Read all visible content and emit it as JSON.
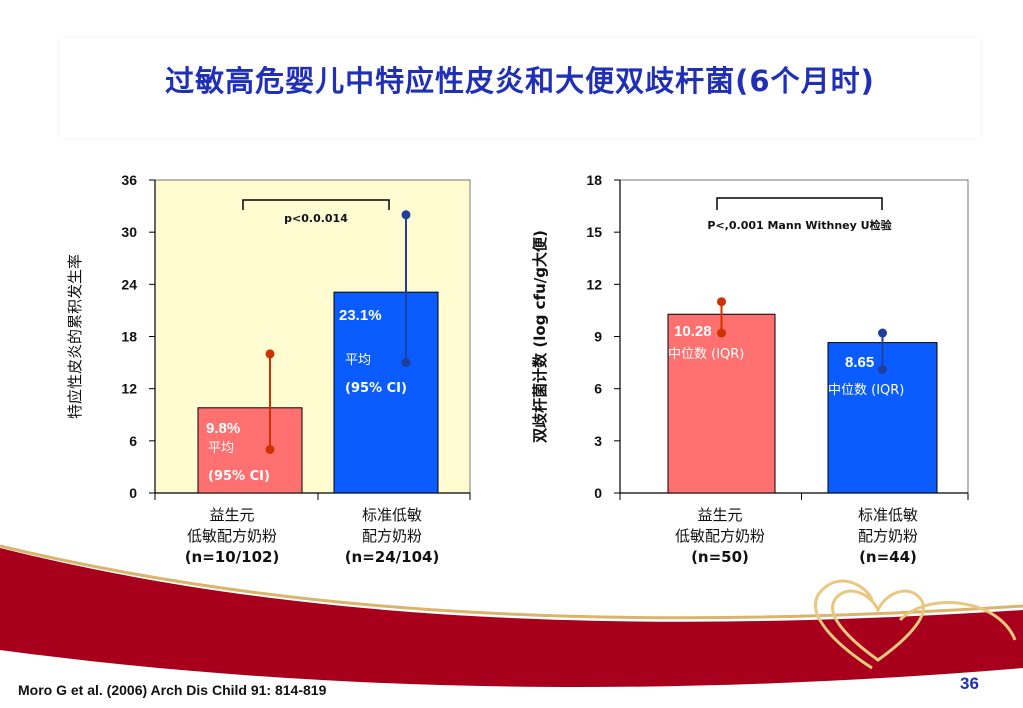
{
  "slide": {
    "title": "过敏高危婴儿中特应性皮炎和大便双歧杆菌(6个月时)",
    "citation": "Moro G et al. (2006) Arch Dis Child 91: 814-819",
    "page_number": "36",
    "colors": {
      "title": "#1f2fb8",
      "probiotic_bar": "#ff7070",
      "standard_bar": "#0a5cff",
      "plot_bg_left": "#fefcd0",
      "error_red": "#cc3300",
      "error_blue": "#1f3f9f",
      "footer": "#a8001c"
    }
  },
  "chart_data": [
    {
      "type": "bar",
      "ylabel": "特应性皮炎的累积发生率",
      "ylim": [
        0,
        36
      ],
      "yticks": [
        0,
        6,
        12,
        18,
        24,
        30,
        36
      ],
      "categories": [
        [
          "益生元",
          "低敏配方奶粉",
          "(n=10/102)"
        ],
        [
          "标准低敏",
          "配方奶粉",
          "(n=24/104)"
        ]
      ],
      "values": [
        9.8,
        23.1
      ],
      "value_labels": [
        "9.8%",
        "23.1%"
      ],
      "stat_labels": [
        [
          "平均",
          "(95% CI)"
        ],
        [
          "平均",
          "(95% CI)"
        ]
      ],
      "ci": [
        [
          5.0,
          16.0
        ],
        [
          15.0,
          32.0
        ]
      ],
      "bracket_label": "p<0.0.014"
    },
    {
      "type": "bar",
      "ylabel": "双歧杆菌计数 (log cfu/g大便)",
      "ylim": [
        0,
        18
      ],
      "yticks": [
        0,
        3,
        6,
        9,
        12,
        15,
        18
      ],
      "categories": [
        [
          "益生元",
          "低敏配方奶粉",
          "(n=50)"
        ],
        [
          "标准低敏",
          "配方奶粉",
          "(n=44)"
        ]
      ],
      "values": [
        10.28,
        8.65
      ],
      "value_labels": [
        "10.28",
        "8.65"
      ],
      "stat_labels": [
        [
          "中位数 (IQR)"
        ],
        [
          "中位数 (IQR)"
        ]
      ],
      "ci": [
        [
          9.2,
          11.0
        ],
        [
          7.1,
          9.2
        ]
      ],
      "bracket_label": "P<,0.001 Mann Withney U检验"
    }
  ]
}
